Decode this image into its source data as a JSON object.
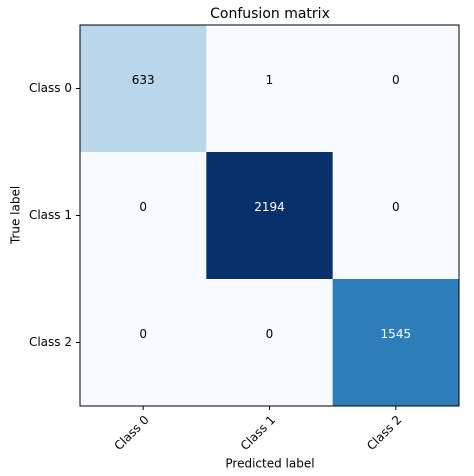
{
  "chart_data": {
    "type": "heatmap",
    "title": "Confusion matrix",
    "x_label": "Predicted label",
    "y_label": "True label",
    "x_categories": [
      "Class 0",
      "Class 1",
      "Class 2"
    ],
    "y_categories": [
      "Class 0",
      "Class 1",
      "Class 2"
    ],
    "values": [
      [
        633,
        1,
        0
      ],
      [
        0,
        2194,
        0
      ],
      [
        0,
        0,
        1545
      ]
    ],
    "colormap": "Blues"
  }
}
